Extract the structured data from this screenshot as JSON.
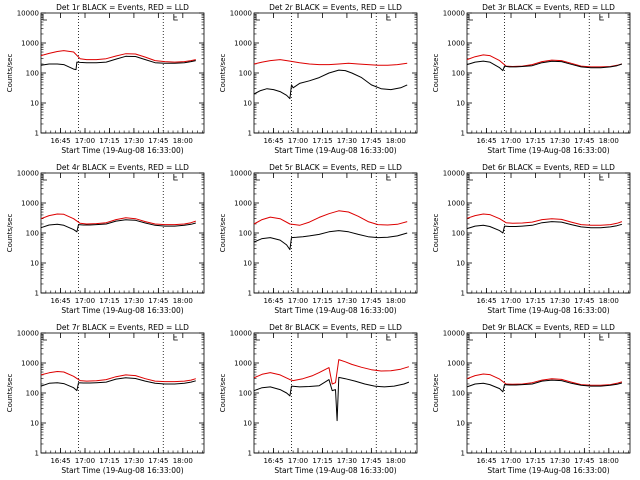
{
  "colors": {
    "events": "#000000",
    "lld": "#dd0000"
  },
  "chart_data": [
    {
      "type": "line",
      "title": "Det 1r BLACK = Events, RED = LLD",
      "xlabel": "Start Time (19-Aug-08 16:33:00)",
      "ylabel": "Counts/sec",
      "x_ticks": [
        "16:45",
        "17:00",
        "17:15",
        "17:30",
        "17:45",
        "18:00"
      ],
      "y_ticks": [
        "1",
        "10",
        "100",
        "1000",
        "10000"
      ],
      "y_scale": "log",
      "ylim": [
        1,
        10000
      ],
      "xlim_min": [
        0,
        100
      ],
      "vlines_min": [
        23,
        75
      ],
      "series": [
        {
          "color": "lld",
          "x": [
            0,
            5,
            10,
            14,
            20,
            24,
            28,
            34,
            40,
            46,
            52,
            58,
            64,
            70,
            76,
            82,
            88,
            92,
            95
          ],
          "values": [
            380,
            450,
            520,
            560,
            500,
            300,
            280,
            280,
            300,
            370,
            440,
            430,
            340,
            260,
            240,
            230,
            240,
            260,
            280
          ]
        },
        {
          "color": "events",
          "x": [
            0,
            5,
            10,
            14,
            20,
            21.5,
            22,
            24,
            28,
            34,
            40,
            46,
            52,
            58,
            64,
            70,
            76,
            82,
            88,
            92,
            95
          ],
          "values": [
            180,
            200,
            200,
            190,
            135,
            130,
            230,
            225,
            220,
            220,
            230,
            290,
            360,
            355,
            280,
            220,
            210,
            210,
            220,
            240,
            260
          ]
        }
      ]
    },
    {
      "type": "line",
      "title": "Det 2r BLACK = Events, RED = LLD",
      "xlabel": "Start Time (19-Aug-08 16:33:00)",
      "ylabel": "Counts/sec",
      "x_ticks": [
        "16:45",
        "17:00",
        "17:15",
        "17:30",
        "17:45",
        "18:00"
      ],
      "y_ticks": [
        "1",
        "10",
        "100",
        "1000",
        "10000"
      ],
      "y_scale": "log",
      "ylim": [
        1,
        10000
      ],
      "xlim_min": [
        0,
        100
      ],
      "vlines_min": [
        23,
        75
      ],
      "series": [
        {
          "color": "lld",
          "x": [
            0,
            5,
            10,
            16,
            22,
            28,
            34,
            40,
            46,
            52,
            58,
            64,
            70,
            76,
            82,
            88,
            94
          ],
          "values": [
            200,
            230,
            260,
            280,
            250,
            220,
            200,
            190,
            190,
            200,
            210,
            200,
            190,
            180,
            180,
            190,
            210
          ]
        },
        {
          "color": "events",
          "x": [
            0,
            4,
            8,
            12,
            16,
            20,
            22,
            23,
            24,
            28,
            34,
            40,
            46,
            52,
            56,
            60,
            66,
            72,
            78,
            84,
            90,
            94
          ],
          "values": [
            20,
            26,
            30,
            28,
            24,
            18,
            14,
            40,
            32,
            45,
            55,
            70,
            100,
            125,
            120,
            100,
            70,
            40,
            30,
            28,
            32,
            40
          ]
        }
      ]
    },
    {
      "type": "line",
      "title": "Det 3r BLACK = Events, RED = LLD",
      "xlabel": "Start Time (19-Aug-08 16:33:00)",
      "ylabel": "Counts/sec",
      "x_ticks": [
        "16:45",
        "17:00",
        "17:15",
        "17:30",
        "17:45",
        "18:00"
      ],
      "y_ticks": [
        "1",
        "10",
        "100",
        "1000",
        "10000"
      ],
      "y_scale": "log",
      "ylim": [
        1,
        10000
      ],
      "xlim_min": [
        0,
        100
      ],
      "vlines_min": [
        23,
        75
      ],
      "series": [
        {
          "color": "lld",
          "x": [
            0,
            5,
            10,
            14,
            20,
            24,
            28,
            34,
            40,
            46,
            52,
            58,
            64,
            70,
            76,
            82,
            88,
            92,
            95
          ],
          "values": [
            280,
            350,
            400,
            380,
            260,
            170,
            165,
            170,
            190,
            240,
            270,
            260,
            210,
            170,
            160,
            160,
            165,
            180,
            200
          ]
        },
        {
          "color": "events",
          "x": [
            0,
            5,
            10,
            14,
            20,
            22,
            23,
            26,
            30,
            34,
            40,
            46,
            52,
            58,
            64,
            70,
            76,
            82,
            88,
            92,
            95
          ],
          "values": [
            190,
            230,
            250,
            230,
            150,
            120,
            170,
            160,
            160,
            165,
            175,
            220,
            245,
            240,
            195,
            160,
            150,
            150,
            160,
            175,
            200
          ]
        }
      ]
    },
    {
      "type": "line",
      "title": "Det 4r BLACK = Events, RED = LLD",
      "xlabel": "Start Time (19-Aug-08 16:33:00)",
      "ylabel": "Counts/sec",
      "x_ticks": [
        "16:45",
        "17:00",
        "17:15",
        "17:30",
        "17:45",
        "18:00"
      ],
      "y_ticks": [
        "1",
        "10",
        "100",
        "1000",
        "10000"
      ],
      "y_scale": "log",
      "ylim": [
        1,
        10000
      ],
      "xlim_min": [
        0,
        100
      ],
      "vlines_min": [
        23,
        75
      ],
      "series": [
        {
          "color": "lld",
          "x": [
            0,
            5,
            10,
            14,
            20,
            24,
            28,
            34,
            40,
            46,
            52,
            58,
            64,
            70,
            76,
            82,
            88,
            92,
            95
          ],
          "values": [
            300,
            380,
            430,
            420,
            300,
            210,
            200,
            205,
            220,
            280,
            320,
            300,
            240,
            200,
            190,
            190,
            200,
            220,
            250
          ]
        },
        {
          "color": "events",
          "x": [
            0,
            5,
            10,
            14,
            20,
            22,
            23,
            26,
            30,
            34,
            40,
            46,
            52,
            58,
            64,
            70,
            76,
            82,
            88,
            92,
            95
          ],
          "values": [
            150,
            185,
            195,
            180,
            130,
            110,
            190,
            185,
            185,
            190,
            200,
            250,
            275,
            265,
            215,
            180,
            170,
            170,
            180,
            195,
            215
          ]
        }
      ]
    },
    {
      "type": "line",
      "title": "Det 5r BLACK = Events, RED = LLD",
      "xlabel": "Start Time (19-Aug-08 16:33:00)",
      "ylabel": "Counts/sec",
      "x_ticks": [
        "16:45",
        "17:00",
        "17:15",
        "17:30",
        "17:45",
        "18:00"
      ],
      "y_ticks": [
        "1",
        "10",
        "100",
        "1000",
        "10000"
      ],
      "y_scale": "log",
      "ylim": [
        1,
        10000
      ],
      "xlim_min": [
        0,
        100
      ],
      "vlines_min": [
        23,
        75
      ],
      "series": [
        {
          "color": "lld",
          "x": [
            0,
            5,
            10,
            16,
            22,
            28,
            34,
            40,
            46,
            52,
            58,
            64,
            70,
            76,
            82,
            88,
            94
          ],
          "values": [
            200,
            280,
            340,
            300,
            200,
            180,
            230,
            330,
            440,
            550,
            500,
            360,
            240,
            190,
            185,
            195,
            240
          ]
        },
        {
          "color": "events",
          "x": [
            0,
            5,
            10,
            16,
            20,
            22,
            23,
            26,
            30,
            34,
            40,
            46,
            52,
            58,
            64,
            70,
            76,
            82,
            88,
            94
          ],
          "values": [
            50,
            65,
            70,
            58,
            40,
            28,
            70,
            72,
            75,
            80,
            90,
            110,
            120,
            110,
            90,
            75,
            70,
            72,
            80,
            100
          ]
        }
      ]
    },
    {
      "type": "line",
      "title": "Det 6r BLACK = Events, RED = LLD",
      "xlabel": "Start Time (19-Aug-08 16:33:00)",
      "ylabel": "Counts/sec",
      "x_ticks": [
        "16:45",
        "17:00",
        "17:15",
        "17:30",
        "17:45",
        "18:00"
      ],
      "y_ticks": [
        "1",
        "10",
        "100",
        "1000",
        "10000"
      ],
      "y_scale": "log",
      "ylim": [
        1,
        10000
      ],
      "xlim_min": [
        0,
        100
      ],
      "vlines_min": [
        23,
        75
      ],
      "series": [
        {
          "color": "lld",
          "x": [
            0,
            5,
            10,
            14,
            20,
            24,
            28,
            34,
            40,
            46,
            52,
            58,
            64,
            70,
            76,
            82,
            88,
            92,
            95
          ],
          "values": [
            310,
            380,
            430,
            410,
            300,
            220,
            210,
            215,
            230,
            280,
            300,
            285,
            230,
            190,
            180,
            180,
            190,
            210,
            240
          ]
        },
        {
          "color": "events",
          "x": [
            0,
            5,
            10,
            14,
            20,
            22,
            23,
            26,
            30,
            34,
            40,
            46,
            52,
            58,
            64,
            70,
            76,
            82,
            88,
            92,
            95
          ],
          "values": [
            140,
            170,
            180,
            165,
            120,
            100,
            170,
            165,
            165,
            170,
            180,
            220,
            240,
            230,
            190,
            160,
            150,
            150,
            160,
            175,
            195
          ]
        }
      ]
    },
    {
      "type": "line",
      "title": "Det 7r BLACK = Events, RED = LLD",
      "xlabel": "Start Time (19-Aug-08 16:33:00)",
      "ylabel": "Counts/sec",
      "x_ticks": [
        "16:45",
        "17:00",
        "17:15",
        "17:30",
        "17:45",
        "18:00"
      ],
      "y_ticks": [
        "1",
        "10",
        "100",
        "1000",
        "10000"
      ],
      "y_scale": "log",
      "ylim": [
        1,
        10000
      ],
      "xlim_min": [
        0,
        100
      ],
      "vlines_min": [
        23,
        75
      ],
      "series": [
        {
          "color": "lld",
          "x": [
            0,
            5,
            10,
            14,
            20,
            24,
            28,
            34,
            40,
            46,
            52,
            58,
            64,
            70,
            76,
            82,
            88,
            92,
            95
          ],
          "values": [
            400,
            470,
            520,
            500,
            360,
            260,
            250,
            255,
            280,
            350,
            400,
            380,
            300,
            250,
            240,
            240,
            250,
            270,
            300
          ]
        },
        {
          "color": "events",
          "x": [
            0,
            5,
            10,
            14,
            20,
            22,
            23,
            26,
            30,
            34,
            40,
            46,
            52,
            58,
            64,
            70,
            76,
            82,
            88,
            92,
            95
          ],
          "values": [
            170,
            210,
            220,
            205,
            150,
            120,
            220,
            215,
            215,
            220,
            230,
            290,
            320,
            305,
            250,
            210,
            200,
            200,
            210,
            230,
            255
          ]
        }
      ]
    },
    {
      "type": "line",
      "title": "Det 8r BLACK = Events, RED = LLD",
      "xlabel": "Start Time (19-Aug-08 16:33:00)",
      "ylabel": "Counts/sec",
      "x_ticks": [
        "16:45",
        "17:00",
        "17:15",
        "17:30",
        "17:45",
        "18:00"
      ],
      "y_ticks": [
        "1",
        "10",
        "100",
        "1000",
        "10000"
      ],
      "y_scale": "log",
      "ylim": [
        1,
        10000
      ],
      "xlim_min": [
        0,
        100
      ],
      "vlines_min": [
        23,
        75
      ],
      "series": [
        {
          "color": "lld",
          "x": [
            0,
            5,
            10,
            16,
            22,
            24,
            30,
            36,
            40,
            46,
            48,
            50,
            52,
            56,
            60,
            66,
            72,
            78,
            84,
            90,
            95
          ],
          "values": [
            320,
            420,
            480,
            400,
            280,
            260,
            300,
            380,
            480,
            700,
            200,
            220,
            1300,
            1100,
            900,
            720,
            600,
            540,
            550,
            620,
            750
          ]
        },
        {
          "color": "events",
          "x": [
            0,
            5,
            10,
            16,
            20,
            22,
            23,
            28,
            34,
            40,
            46,
            48,
            50,
            51,
            52,
            56,
            62,
            68,
            74,
            80,
            86,
            92,
            95
          ],
          "values": [
            120,
            150,
            160,
            130,
            100,
            80,
            170,
            160,
            165,
            175,
            280,
            120,
            130,
            12,
            330,
            300,
            250,
            200,
            170,
            160,
            170,
            200,
            230
          ]
        }
      ]
    },
    {
      "type": "line",
      "title": "Det 9r BLACK = Events, RED = LLD",
      "xlabel": "Start Time (19-Aug-08 16:33:00)",
      "ylabel": "Counts/sec",
      "x_ticks": [
        "16:45",
        "17:00",
        "17:15",
        "17:30",
        "17:45",
        "18:00"
      ],
      "y_ticks": [
        "1",
        "10",
        "100",
        "1000",
        "10000"
      ],
      "y_scale": "log",
      "ylim": [
        1,
        10000
      ],
      "xlim_min": [
        0,
        100
      ],
      "vlines_min": [
        23,
        75
      ],
      "series": [
        {
          "color": "lld",
          "x": [
            0,
            5,
            10,
            14,
            20,
            24,
            28,
            34,
            40,
            46,
            52,
            58,
            64,
            70,
            76,
            82,
            88,
            92,
            95
          ],
          "values": [
            300,
            380,
            430,
            410,
            290,
            200,
            195,
            200,
            220,
            270,
            300,
            285,
            230,
            190,
            180,
            180,
            190,
            210,
            235
          ]
        },
        {
          "color": "events",
          "x": [
            0,
            5,
            10,
            14,
            20,
            22,
            23,
            26,
            30,
            34,
            40,
            46,
            52,
            58,
            64,
            70,
            76,
            82,
            88,
            92,
            95
          ],
          "values": [
            160,
            200,
            210,
            190,
            140,
            110,
            190,
            185,
            185,
            190,
            200,
            250,
            270,
            260,
            210,
            180,
            170,
            170,
            180,
            195,
            215
          ]
        }
      ]
    }
  ]
}
